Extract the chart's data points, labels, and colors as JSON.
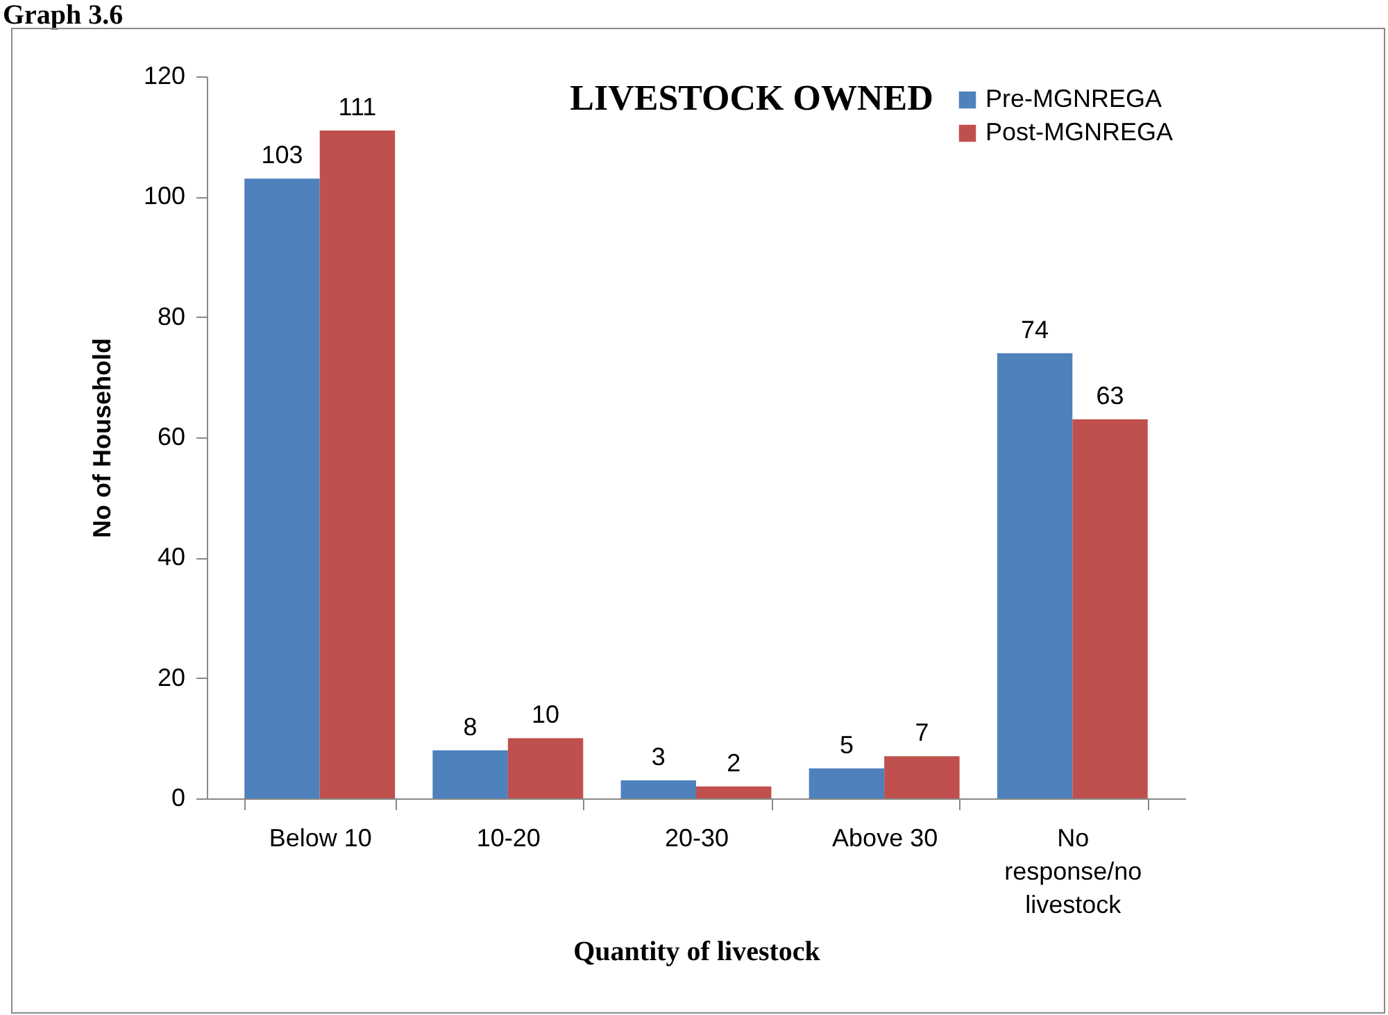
{
  "chart_data": {
    "type": "bar",
    "title": "LIVESTOCK OWNED",
    "xlabel": "Quantity of livestock",
    "ylabel": "No of Household",
    "annotations": [
      "Graph 3.6"
    ],
    "categories": [
      "Below 10",
      "10-20",
      "20-30",
      "Above 30",
      "No response/no livestock"
    ],
    "series": [
      {
        "name": "Pre-MGNREGA",
        "color": "#4f81bd",
        "values": [
          103,
          8,
          3,
          5,
          74
        ]
      },
      {
        "name": "Post-MGNREGA",
        "color": "#c0504d",
        "values": [
          111,
          10,
          2,
          7,
          63
        ]
      }
    ],
    "ylim": [
      0,
      120
    ],
    "yticks": [
      0,
      20,
      40,
      60,
      80,
      100,
      120
    ],
    "grid": false,
    "legend": "top right",
    "data_labels": true
  }
}
